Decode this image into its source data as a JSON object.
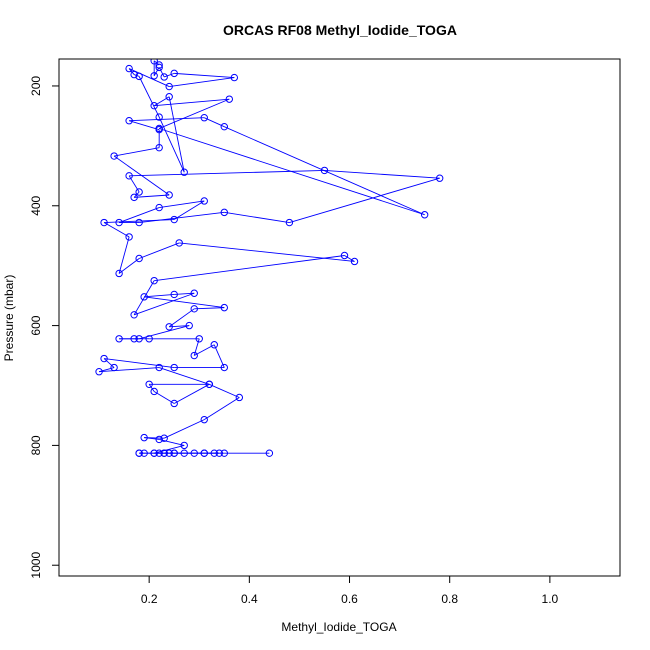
{
  "chart_data": {
    "type": "line",
    "title": "ORCAS RF08 Methyl_Iodide_TOGA",
    "xlabel": "Methyl_Iodide_TOGA",
    "ylabel": "Pressure (mbar)",
    "xlim": [
      0.02,
      1.14
    ],
    "ylim": [
      1018,
      155
    ],
    "y_reversed": true,
    "x_ticks": [
      0.2,
      0.4,
      0.6,
      0.8,
      1.0
    ],
    "x_tick_labels": [
      "0.2",
      "0.4",
      "0.6",
      "0.8",
      "1.0"
    ],
    "y_ticks": [
      200,
      400,
      600,
      800,
      1000
    ],
    "y_tick_labels": [
      "200",
      "400",
      "600",
      "800",
      "1000"
    ],
    "grid": false,
    "series": [
      {
        "color": "#0000ff",
        "marker": "open-circle",
        "points": [
          [
            0.44,
            813
          ],
          [
            0.35,
            813
          ],
          [
            0.33,
            813
          ],
          [
            0.31,
            813
          ],
          [
            0.29,
            813
          ],
          [
            0.27,
            813
          ],
          [
            0.25,
            813
          ],
          [
            0.24,
            813
          ],
          [
            0.23,
            813
          ],
          [
            0.22,
            813
          ],
          [
            0.21,
            813
          ],
          [
            0.19,
            813
          ],
          [
            0.18,
            813
          ],
          [
            0.18,
            813
          ],
          [
            0.25,
            813
          ],
          [
            0.31,
            813
          ],
          [
            0.34,
            813
          ],
          [
            0.23,
            813
          ],
          [
            0.21,
            813
          ],
          [
            0.27,
            800
          ],
          [
            0.22,
            790
          ],
          [
            0.19,
            787
          ],
          [
            0.23,
            788
          ],
          [
            0.31,
            757
          ],
          [
            0.38,
            720
          ],
          [
            0.32,
            698
          ],
          [
            0.25,
            730
          ],
          [
            0.21,
            710
          ],
          [
            0.2,
            698
          ],
          [
            0.32,
            698
          ],
          [
            0.22,
            670
          ],
          [
            0.1,
            677
          ],
          [
            0.13,
            670
          ],
          [
            0.11,
            655
          ],
          [
            0.25,
            670
          ],
          [
            0.35,
            670
          ],
          [
            0.33,
            632
          ],
          [
            0.29,
            650
          ],
          [
            0.3,
            622
          ],
          [
            0.2,
            622
          ],
          [
            0.17,
            622
          ],
          [
            0.14,
            622
          ],
          [
            0.18,
            622
          ],
          [
            0.28,
            600
          ],
          [
            0.24,
            602
          ],
          [
            0.29,
            572
          ],
          [
            0.35,
            570
          ],
          [
            0.19,
            552
          ],
          [
            0.25,
            548
          ],
          [
            0.29,
            546
          ],
          [
            0.17,
            582
          ],
          [
            0.21,
            525
          ],
          [
            0.59,
            483
          ],
          [
            0.61,
            493
          ],
          [
            0.26,
            462
          ],
          [
            0.18,
            488
          ],
          [
            0.14,
            513
          ],
          [
            0.16,
            452
          ],
          [
            0.11,
            428
          ],
          [
            0.25,
            423
          ],
          [
            0.31,
            392
          ],
          [
            0.22,
            403
          ],
          [
            0.14,
            428
          ],
          [
            0.18,
            428
          ],
          [
            0.35,
            411
          ],
          [
            0.48,
            428
          ],
          [
            0.78,
            354
          ],
          [
            0.55,
            341
          ],
          [
            0.16,
            350
          ],
          [
            0.18,
            377
          ],
          [
            0.17,
            386
          ],
          [
            0.24,
            382
          ],
          [
            0.13,
            317
          ],
          [
            0.22,
            303
          ],
          [
            0.22,
            273
          ],
          [
            0.16,
            258
          ],
          [
            0.31,
            253
          ],
          [
            0.35,
            268
          ],
          [
            0.75,
            415
          ],
          [
            0.22,
            271
          ],
          [
            0.36,
            222
          ],
          [
            0.21,
            233
          ],
          [
            0.24,
            218
          ],
          [
            0.27,
            344
          ],
          [
            0.22,
            252
          ],
          [
            0.18,
            184
          ],
          [
            0.17,
            181
          ],
          [
            0.16,
            171
          ],
          [
            0.24,
            201
          ],
          [
            0.37,
            186
          ],
          [
            0.25,
            179
          ],
          [
            0.23,
            185
          ],
          [
            0.22,
            169
          ],
          [
            0.21,
            183
          ],
          [
            0.21,
            158
          ],
          [
            0.22,
            165
          ]
        ]
      }
    ]
  }
}
